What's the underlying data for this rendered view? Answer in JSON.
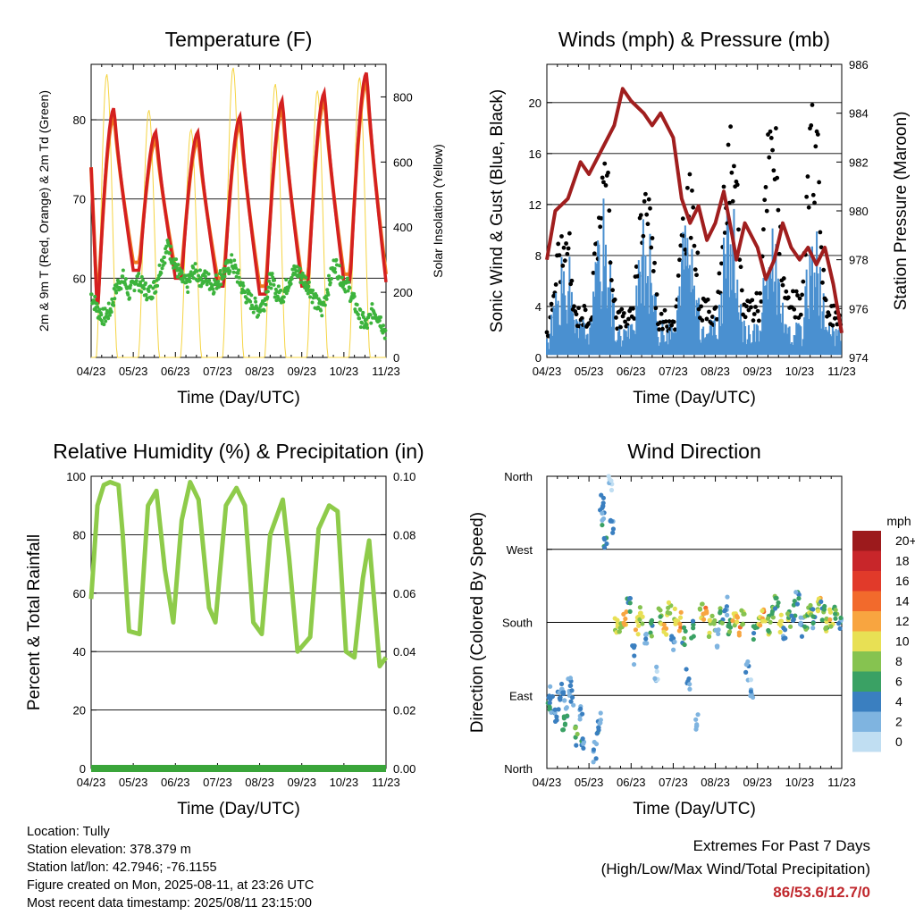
{
  "chart_data": [
    {
      "type": "line",
      "title": "Temperature (F)",
      "xlabel": "Time (Day/UTC)",
      "ylabel": "2m & 9m T (Red, Orange) & 2m Td (Green)",
      "y2label": "Solar Insolation (Yellow)",
      "x_ticks": [
        "04/23",
        "05/23",
        "06/23",
        "07/23",
        "08/23",
        "09/23",
        "10/23",
        "11/23"
      ],
      "ylim": [
        50,
        87
      ],
      "y_ticks": [
        60,
        70,
        80
      ],
      "y2lim": [
        0,
        900
      ],
      "y2_ticks": [
        0,
        200,
        400,
        600,
        800
      ],
      "grid": true,
      "colors": {
        "temp_2m": "#d42020",
        "temp_9m": "#f07a20",
        "dewpoint": "#3cb33c",
        "solar": "#f5d442"
      },
      "series": [
        {
          "key": "temp_2m",
          "type": "line",
          "daily_max": [
            81.5,
            78.5,
            78.5,
            80.5,
            82.5,
            83.5,
            86
          ],
          "daily_min": [
            55,
            61,
            60,
            59,
            58,
            59,
            59.5
          ],
          "start": 74,
          "end": 83
        },
        {
          "key": "temp_9m",
          "type": "line",
          "daily_max": [
            80.5,
            77.5,
            77.5,
            79.5,
            81.5,
            82.5,
            85
          ],
          "daily_min": [
            56,
            62,
            61,
            60,
            59,
            60,
            60.5
          ]
        },
        {
          "key": "dewpoint",
          "type": "scatter",
          "values": [
            58,
            56,
            55,
            56,
            59,
            60,
            58,
            60,
            59,
            58,
            59,
            62,
            64,
            62,
            60,
            59,
            61,
            60,
            60,
            59,
            60,
            61,
            62,
            60,
            58,
            57,
            56,
            57,
            60,
            58,
            58,
            60,
            61,
            60,
            59,
            57,
            56,
            59,
            62,
            60,
            59,
            57,
            55,
            54,
            56,
            55,
            53
          ]
        },
        {
          "key": "solar",
          "type": "line",
          "daily_peak": [
            870,
            760,
            700,
            890,
            840,
            820,
            860
          ]
        }
      ]
    },
    {
      "type": "line",
      "title": "Winds (mph) & Pressure (mb)",
      "xlabel": "Time (Day/UTC)",
      "ylabel": "Sonic Wind & Gust (Blue, Black)",
      "y2label": "Station Pressure (Maroon)",
      "x_ticks": [
        "04/23",
        "05/23",
        "06/23",
        "07/23",
        "08/23",
        "09/23",
        "10/23",
        "11/23"
      ],
      "ylim": [
        0,
        23
      ],
      "y_ticks": [
        0,
        4,
        8,
        12,
        16,
        20
      ],
      "y2lim": [
        974,
        986
      ],
      "y2_ticks": [
        974,
        976,
        978,
        980,
        982,
        984,
        986
      ],
      "grid": true,
      "colors": {
        "wind": "#4a90d0",
        "gust": "#000000",
        "pressure": "#a01e1e"
      },
      "series": [
        {
          "key": "pressure",
          "x": [
            0,
            0.2,
            0.5,
            0.8,
            1.0,
            1.3,
            1.6,
            1.8,
            2.0,
            2.3,
            2.5,
            2.7,
            3.0,
            3.2,
            3.4,
            3.6,
            3.8,
            4.0,
            4.2,
            4.4,
            4.5,
            4.7,
            5.0,
            5.2,
            5.4,
            5.6,
            5.8,
            6.0,
            6.2,
            6.4,
            6.6,
            6.8,
            7.0
          ],
          "values": [
            978,
            980,
            980.5,
            982,
            981.5,
            982.5,
            983.5,
            985,
            984.5,
            984,
            983.5,
            984,
            983,
            980.5,
            979.5,
            980.2,
            978.8,
            979.5,
            980.8,
            979,
            978,
            979.5,
            978.5,
            977.2,
            978,
            979.5,
            978.5,
            978,
            978.5,
            977.8,
            978.5,
            977,
            975
          ]
        },
        {
          "key": "wind",
          "type": "scatter",
          "daily_peak": [
            8,
            13,
            11.5,
            12,
            13,
            12,
            11,
            10.5
          ]
        },
        {
          "key": "gust",
          "type": "scatter",
          "daily_peak": [
            10.5,
            17,
            16,
            15,
            18.5,
            20.8,
            20.8,
            16.5
          ]
        }
      ]
    },
    {
      "type": "line",
      "title": "Relative Humidity (%) & Precipitation (in)",
      "xlabel": "Time (Day/UTC)",
      "ylabel": "Percent & Total Rainfall",
      "x_ticks": [
        "04/23",
        "05/23",
        "06/23",
        "07/23",
        "08/23",
        "09/23",
        "10/23",
        "11/23"
      ],
      "ylim": [
        0,
        100
      ],
      "y_ticks": [
        0,
        20,
        40,
        60,
        80,
        100
      ],
      "y2lim": [
        0,
        0.1
      ],
      "y2_ticks": [
        "0.00",
        "0.02",
        "0.04",
        "0.06",
        "0.08",
        "0.10"
      ],
      "grid": true,
      "colors": {
        "rh": "#8ecb4a",
        "precip": "#3aa53a"
      },
      "series": [
        {
          "key": "rh",
          "x": [
            0,
            0.15,
            0.3,
            0.45,
            0.65,
            0.75,
            0.9,
            1.15,
            1.35,
            1.55,
            1.75,
            1.95,
            2.15,
            2.35,
            2.55,
            2.8,
            2.95,
            3.2,
            3.45,
            3.65,
            3.85,
            4.05,
            4.25,
            4.55,
            4.7,
            4.9,
            5.2,
            5.4,
            5.65,
            5.85,
            6.05,
            6.25,
            6.45,
            6.6,
            6.85,
            7.0
          ],
          "values": [
            58,
            90,
            97,
            98,
            97,
            80,
            47,
            46,
            90,
            95,
            68,
            50,
            85,
            98,
            92,
            55,
            50,
            90,
            96,
            90,
            50,
            46,
            80,
            92,
            72,
            40,
            45,
            82,
            90,
            88,
            40,
            38,
            65,
            78,
            35,
            38
          ]
        },
        {
          "key": "precip",
          "values": [
            0,
            0,
            0,
            0,
            0,
            0,
            0,
            0
          ]
        }
      ]
    },
    {
      "type": "scatter",
      "title": "Wind Direction",
      "xlabel": "Time (Day/UTC)",
      "ylabel": "Direction (Colored By Speed)",
      "x_ticks": [
        "04/23",
        "05/23",
        "06/23",
        "07/23",
        "08/23",
        "09/23",
        "10/23",
        "11/23"
      ],
      "y_ticks": [
        "North",
        "East",
        "South",
        "West",
        "North"
      ],
      "ylim": [
        0,
        360
      ],
      "grid": true,
      "legend": {
        "title": "mph",
        "labels": [
          "20+",
          "18",
          "16",
          "14",
          "12",
          "10",
          "8",
          "6",
          "4",
          "2",
          "0"
        ],
        "colors": [
          "#9c1a1c",
          "#c8262a",
          "#e13a2a",
          "#f26a2c",
          "#f8a540",
          "#e8e054",
          "#86c350",
          "#3aa164",
          "#3a7fc0",
          "#7fb4e0",
          "#c0def2"
        ]
      },
      "series": [
        {
          "key": "direction",
          "x": [
            0.05,
            0.1,
            0.2,
            0.3,
            0.35,
            0.4,
            0.45,
            0.55,
            0.6,
            0.7,
            0.8,
            0.85,
            1.15,
            1.2,
            1.25,
            1.3,
            1.35,
            1.4,
            1.5,
            1.55,
            1.65,
            1.75,
            1.85,
            1.95,
            2.05,
            2.15,
            2.25,
            2.35,
            2.5,
            2.6,
            2.7,
            2.8,
            2.9,
            3.0,
            3.05,
            3.15,
            3.25,
            3.35,
            3.45,
            3.55,
            3.65,
            3.75,
            3.85,
            3.95,
            4.05,
            4.15,
            4.25,
            4.35,
            4.45,
            4.55,
            4.65,
            4.75,
            4.85,
            4.95,
            5.05,
            5.15,
            5.25,
            5.35,
            5.45,
            5.55,
            5.65,
            5.75,
            5.85,
            5.95,
            6.05,
            6.15,
            6.25,
            6.35,
            6.45,
            6.55,
            6.65,
            6.75,
            6.85,
            6.95
          ],
          "values": [
            90,
            80,
            70,
            85,
            95,
            60,
            75,
            100,
            90,
            40,
            70,
            30,
            20,
            50,
            60,
            330,
            310,
            280,
            350,
            300,
            180,
            170,
            185,
            200,
            140,
            175,
            190,
            160,
            170,
            120,
            185,
            175,
            200,
            150,
            190,
            180,
            165,
            110,
            170,
            60,
            195,
            185,
            175,
            180,
            160,
            190,
            200,
            170,
            185,
            175,
            190,
            120,
            100,
            165,
            180,
            185,
            175,
            190,
            200,
            180,
            170,
            185,
            195,
            205,
            175,
            180,
            190,
            185,
            200,
            195,
            175,
            185,
            190,
            180
          ],
          "speeds": [
            4,
            4,
            3,
            4,
            4,
            6,
            4,
            3,
            4,
            6,
            3,
            4,
            3,
            4,
            2,
            4,
            4,
            4,
            1,
            4,
            10,
            8,
            12,
            6,
            3,
            10,
            9,
            2,
            6,
            2,
            8,
            12,
            9,
            3,
            10,
            12,
            6,
            3,
            5,
            2,
            9,
            12,
            10,
            8,
            2,
            6,
            4,
            7,
            10,
            12,
            8,
            3,
            2,
            5,
            10,
            12,
            8,
            7,
            6,
            10,
            4,
            8,
            5,
            4,
            3,
            7,
            8,
            4,
            10,
            6,
            8,
            10,
            7,
            4
          ]
        }
      ]
    }
  ],
  "info": {
    "location": "Location: Tully",
    "elevation": "Station elevation: 378.379 m",
    "latlon": "Station lat/lon: 42.7946; -76.1155",
    "created": "Figure created on Mon, 2025-08-11, at 23:26 UTC",
    "recent": "Most recent data timestamp: 2025/08/11 23:15:00"
  },
  "extremes": {
    "title": "Extremes For Past 7 Days",
    "subtitle": "(High/Low/Max Wind/Total Precipitation)",
    "values": "86/53.6/12.7/0"
  }
}
